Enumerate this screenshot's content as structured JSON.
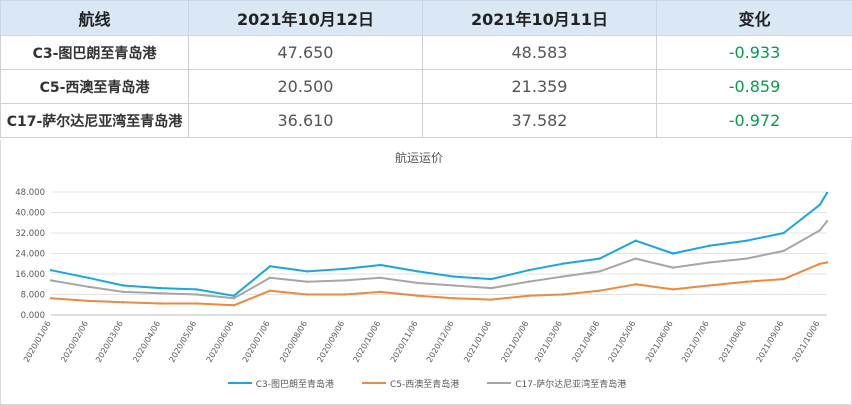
{
  "table": {
    "headers": [
      "航线",
      "2021年10月12日",
      "2021年10月11日",
      "变化"
    ],
    "rows": [
      {
        "route": "C3-图巴朗至青岛港",
        "current": "47.650",
        "previous": "48.583",
        "change": "-0.933"
      },
      {
        "route": "C5-西澳至青岛港",
        "current": "20.500",
        "previous": "21.359",
        "change": "-0.859"
      },
      {
        "route": "C17-萨尔达尼亚湾至青岛港",
        "current": "36.610",
        "previous": "37.582",
        "change": "-0.972"
      }
    ]
  },
  "colors": {
    "c3": "#1aa7e0",
    "c5": "#ed8a3f",
    "c17": "#a6a6a6",
    "change_negative": "#00a04a",
    "header_bg": "#dae7f5"
  },
  "chart_data": {
    "type": "line",
    "title": "航运运价",
    "xlabel": "",
    "ylabel": "",
    "ylim": [
      0,
      48
    ],
    "yticks": [
      "0.000",
      "8.000",
      "16.000",
      "24.000",
      "32.000",
      "40.000",
      "48.000"
    ],
    "xticks": [
      "2020/01/06",
      "2020/02/06",
      "2020/03/06",
      "2020/04/06",
      "2020/05/06",
      "2020/06/06",
      "2020/07/06",
      "2020/08/06",
      "2020/09/06",
      "2020/10/06",
      "2020/11/06",
      "2020/12/06",
      "2021/01/06",
      "2021/02/06",
      "2021/03/06",
      "2021/04/06",
      "2021/05/06",
      "2021/06/06",
      "2021/07/06",
      "2021/08/06",
      "2021/09/06",
      "2021/10/06"
    ],
    "grid": true,
    "legend": "bottom",
    "x": [
      "2020/01/06",
      "2020/02/06",
      "2020/03/06",
      "2020/04/06",
      "2020/05/06",
      "2020/06/06",
      "2020/07/06",
      "2020/08/06",
      "2020/09/06",
      "2020/10/06",
      "2020/11/06",
      "2020/12/06",
      "2021/01/06",
      "2021/02/06",
      "2021/03/06",
      "2021/04/06",
      "2021/05/06",
      "2021/06/06",
      "2021/07/06",
      "2021/08/06",
      "2021/09/06",
      "2021/10/06",
      "2021/10/12"
    ],
    "series": [
      {
        "name": "C3-图巴朗至青岛港",
        "color_key": "c3",
        "values": [
          17.5,
          14.5,
          11.5,
          10.5,
          10.0,
          7.5,
          19.0,
          17.0,
          18.0,
          19.5,
          17.0,
          15.0,
          14.0,
          17.5,
          20.0,
          22.0,
          29.0,
          24.0,
          27.0,
          29.0,
          32.0,
          43.0,
          47.65
        ]
      },
      {
        "name": "C5-西澳至青岛港",
        "color_key": "c5",
        "values": [
          6.5,
          5.5,
          5.0,
          4.5,
          4.5,
          3.8,
          9.5,
          8.0,
          8.0,
          9.0,
          7.5,
          6.5,
          6.0,
          7.5,
          8.0,
          9.5,
          12.0,
          10.0,
          11.5,
          13.0,
          14.0,
          20.0,
          20.5
        ]
      },
      {
        "name": "C17-萨尔达尼亚湾至青岛港",
        "color_key": "c17",
        "values": [
          13.5,
          11.0,
          9.0,
          8.5,
          8.0,
          6.5,
          14.5,
          13.0,
          13.5,
          14.5,
          12.5,
          11.5,
          10.5,
          13.0,
          15.0,
          17.0,
          22.0,
          18.5,
          20.5,
          22.0,
          25.0,
          33.0,
          36.61
        ]
      }
    ]
  }
}
